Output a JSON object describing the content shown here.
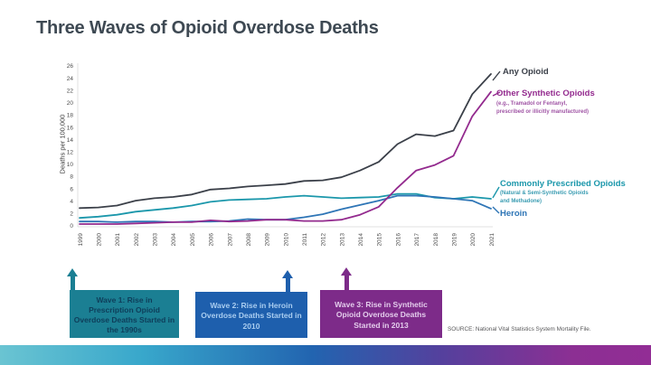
{
  "title": "Three Waves of Opioid Overdose Deaths",
  "title_color": "#3e4953",
  "source_note": "SOURCE: National Vital Statistics System Mortality File.",
  "chart_data": {
    "type": "line",
    "title": "Three Waves of Opioid Overdose Deaths",
    "xlabel": "",
    "ylabel": "Deaths per 100,000",
    "ylim": [
      0,
      26
    ],
    "ytick_step": 2,
    "grid": false,
    "legend_position": "right-annotations",
    "x": [
      1999,
      2000,
      2001,
      2002,
      2003,
      2004,
      2005,
      2006,
      2007,
      2008,
      2009,
      2010,
      2011,
      2012,
      2013,
      2014,
      2015,
      2016,
      2017,
      2018,
      2019,
      2020,
      2021
    ],
    "series": [
      {
        "name": "Any Opioid",
        "color": "#3b4049",
        "values": [
          2.9,
          3.0,
          3.3,
          4.1,
          4.5,
          4.7,
          5.1,
          5.9,
          6.1,
          6.4,
          6.6,
          6.8,
          7.3,
          7.4,
          7.9,
          9.0,
          10.4,
          13.3,
          14.9,
          14.6,
          15.5,
          21.4,
          24.7
        ]
      },
      {
        "name": "Other Synthetic Opioids",
        "subtitle_lines": [
          "(e.g., Tramadol or Fentanyl,",
          "prescribed or illicitly manufactured)"
        ],
        "subtitle_color": "#a055a5",
        "color": "#932a8e",
        "values": [
          0.3,
          0.3,
          0.3,
          0.4,
          0.5,
          0.6,
          0.6,
          0.9,
          0.7,
          0.8,
          1.0,
          1.0,
          0.8,
          0.8,
          1.0,
          1.8,
          3.1,
          6.2,
          9.0,
          9.9,
          11.4,
          17.8,
          21.8
        ]
      },
      {
        "name": "Commonly Prescribed Opioids",
        "subtitle_lines": [
          "(Natural & Semi-Synthetic Opioids",
          "and Methadone)"
        ],
        "subtitle_color": "#3a9cb2",
        "color": "#1b97ab",
        "values": [
          1.3,
          1.5,
          1.8,
          2.3,
          2.6,
          2.9,
          3.3,
          3.9,
          4.2,
          4.3,
          4.4,
          4.7,
          4.9,
          4.7,
          4.5,
          4.6,
          4.7,
          5.2,
          5.2,
          4.6,
          4.4,
          4.7,
          4.4
        ]
      },
      {
        "name": "Heroin",
        "color": "#2e75b6",
        "values": [
          0.7,
          0.7,
          0.6,
          0.7,
          0.7,
          0.6,
          0.7,
          0.7,
          0.8,
          1.1,
          1.0,
          1.0,
          1.4,
          1.9,
          2.7,
          3.4,
          4.1,
          4.9,
          4.9,
          4.7,
          4.4,
          4.1,
          2.8
        ]
      }
    ]
  },
  "waves": {
    "boxes": [
      {
        "text": "Wave 1: Rise in Prescription Opioid Overdose Deaths Started in the 1990s",
        "box_color": "#1b7f93",
        "text_color": "#0e3e5a",
        "arrow_year": 1999
      },
      {
        "text": "Wave 2: Rise in Heroin Overdose Deaths Started in 2010",
        "box_color": "#1e5fad",
        "text_color": "#a9cdf0",
        "arrow_year": 2010
      },
      {
        "text": "Wave 3: Rise in Synthetic Opioid Overdose Deaths Started in 2013",
        "box_color": "#7d2b89",
        "text_color": "#e4cdec",
        "arrow_year": 2013
      }
    ]
  },
  "footer_gradient": [
    "#6ac4d2",
    "#38a7cb",
    "#2264b0",
    "#55409d",
    "#8c2f93",
    "#922d95"
  ],
  "axis_text_color": "#4d4d4d"
}
